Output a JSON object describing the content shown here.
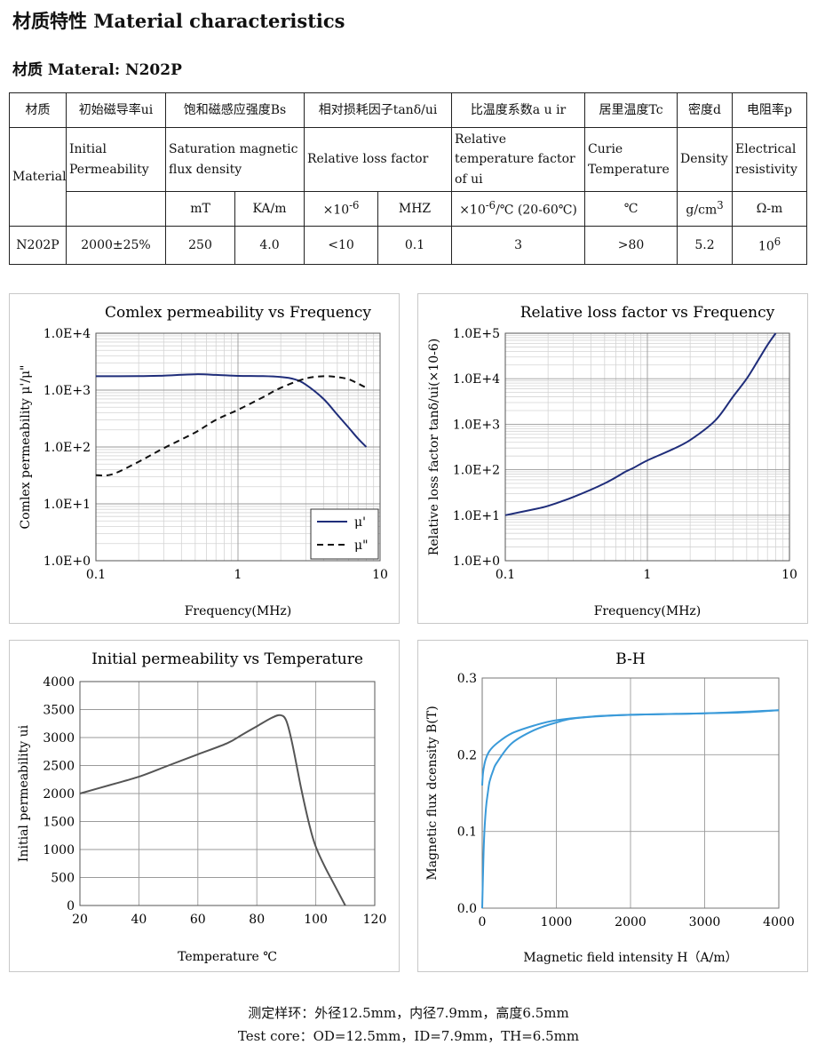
{
  "header": {
    "title": "材质特性 Material characteristics",
    "material_label": "材质 Materal: N202P"
  },
  "table": {
    "cn_headers": [
      "材质",
      "初始磁导率ui",
      "饱和磁感应强度Bs",
      "相对损耗因子tanδ/ui",
      "比温度系数a u ir",
      "居里温度Tc",
      "密度d",
      "电阻率p"
    ],
    "material_label": "Material",
    "en_headers": [
      "Initial Permeability",
      "Saturation magnetic flux density",
      "Relative loss factor",
      "Relative temperature factor of ui",
      "Curie Temperature",
      "Density",
      "Electrical resistivity"
    ],
    "units": {
      "bs_mt": "mT",
      "bs_kam": "KA/m",
      "loss_e": "×10",
      "loss_e_exp": "-6",
      "loss_mhz": "MHZ",
      "temp_coef_pre": "×10",
      "temp_coef_exp": "-6",
      "temp_coef_post": "/℃ (20-60℃)",
      "curie": "℃",
      "density": "g/cm",
      "density_exp": "3",
      "resistivity": "Ω-m"
    },
    "row": {
      "material": "N202P",
      "ui": "2000±25%",
      "bs_mt": "250",
      "bs_kam": "4.0",
      "loss": "<10",
      "loss_mhz": "0.1",
      "temp_coef": "3",
      "curie": ">80",
      "density": "5.2",
      "resistivity_base": "10",
      "resistivity_exp": "6"
    }
  },
  "charts": {
    "permeability_freq": {
      "title": "Comlex permeability vs Frequency",
      "xlabel": "Frequency(MHz)",
      "ylabel": "Comlex permeability μ'/μ\"",
      "x_ticks": [
        "0.1",
        "1",
        "10"
      ],
      "y_ticks": [
        "1.0E+0",
        "1.0E+1",
        "1.0E+2",
        "1.0E+3",
        "1.0E+4"
      ],
      "legend": [
        "μ'",
        "μ\""
      ],
      "color": "#1f2d7a"
    },
    "loss_freq": {
      "title": "Relative loss factor vs Frequency",
      "xlabel": "Frequency(MHz)",
      "ylabel": "Relative loss factor tanδ/ui(×10-6)",
      "x_ticks": [
        "0.1",
        "1",
        "10"
      ],
      "y_ticks": [
        "1.0E+0",
        "1.0E+1",
        "1.0E+2",
        "1.0E+3",
        "1.0E+4",
        "1.0E+5"
      ],
      "color": "#1f2d7a"
    },
    "perm_temp": {
      "title": "Initial permeability vs Temperature",
      "xlabel": "Temperature ℃",
      "ylabel": "Initial permeability ui",
      "x_ticks": [
        "20",
        "40",
        "60",
        "80",
        "100",
        "120"
      ],
      "y_ticks": [
        "0",
        "500",
        "1000",
        "1500",
        "2000",
        "2500",
        "3000",
        "3500",
        "4000"
      ],
      "color": "#555555"
    },
    "bh": {
      "title": "B-H",
      "xlabel": "Magnetic field intensity H（A/m）",
      "ylabel": "Magnetic flux dcensity B(T)",
      "x_ticks": [
        "0",
        "1000",
        "2000",
        "3000",
        "4000"
      ],
      "y_ticks": [
        "0.0",
        "0.1",
        "0.2",
        "0.3"
      ],
      "color": "#3a9ad9"
    }
  },
  "chart_data": [
    {
      "type": "line",
      "title": "Comlex permeability vs Frequency",
      "xlabel": "Frequency(MHz)",
      "ylabel": "Comlex permeability μ'/μ\"",
      "xscale": "log",
      "yscale": "log",
      "xlim": [
        0.1,
        10
      ],
      "ylim": [
        1,
        10000
      ],
      "series": [
        {
          "name": "μ'",
          "style": "solid",
          "x": [
            0.1,
            0.2,
            0.3,
            0.5,
            0.7,
            1,
            1.5,
            2,
            2.5,
            3,
            4,
            5,
            6,
            7,
            8
          ],
          "y": [
            1750,
            1760,
            1800,
            1900,
            1850,
            1780,
            1760,
            1700,
            1550,
            1250,
            700,
            370,
            220,
            140,
            100
          ]
        },
        {
          "name": "μ\"",
          "style": "dashed",
          "x": [
            0.1,
            0.13,
            0.2,
            0.3,
            0.5,
            0.7,
            1,
            1.5,
            2,
            3,
            4,
            5,
            6,
            7,
            8
          ],
          "y": [
            32,
            33,
            55,
            95,
            180,
            300,
            450,
            750,
            1100,
            1600,
            1750,
            1700,
            1550,
            1300,
            1100
          ]
        }
      ]
    },
    {
      "type": "line",
      "title": "Relative loss factor vs Frequency",
      "xlabel": "Frequency(MHz)",
      "ylabel": "Relative loss factor tanδ/ui(×10-6)",
      "xscale": "log",
      "yscale": "log",
      "xlim": [
        0.1,
        10
      ],
      "ylim": [
        1,
        100000
      ],
      "series": [
        {
          "name": "tanδ/ui",
          "x": [
            0.1,
            0.15,
            0.2,
            0.3,
            0.5,
            0.7,
            0.8,
            1,
            1.5,
            2,
            3,
            4,
            5,
            6,
            7,
            8
          ],
          "y": [
            10,
            13,
            16,
            25,
            50,
            90,
            110,
            160,
            280,
            450,
            1200,
            4000,
            10000,
            25000,
            55000,
            100000
          ]
        }
      ]
    },
    {
      "type": "line",
      "title": "Initial permeability vs Temperature",
      "xlabel": "Temperature ℃",
      "ylabel": "Initial permeability ui",
      "xlim": [
        20,
        120
      ],
      "ylim": [
        0,
        4000
      ],
      "series": [
        {
          "name": "ui",
          "x": [
            20,
            30,
            40,
            50,
            60,
            70,
            75,
            80,
            85,
            88,
            90,
            92,
            95,
            98,
            100,
            103,
            106,
            110
          ],
          "y": [
            2000,
            2150,
            2300,
            2500,
            2700,
            2900,
            3050,
            3200,
            3350,
            3400,
            3300,
            2900,
            2100,
            1400,
            1050,
            700,
            400,
            0
          ]
        }
      ]
    },
    {
      "type": "line",
      "title": "B-H",
      "xlabel": "Magnetic field intensity H（A/m）",
      "ylabel": "Magnetic flux dcensity B(T)",
      "xlim": [
        0,
        4000
      ],
      "ylim": [
        0,
        0.3
      ],
      "series": [
        {
          "name": "upper branch",
          "x": [
            0,
            10,
            25,
            50,
            100,
            200,
            400,
            700,
            1000,
            1500,
            2000,
            3000,
            3500,
            4000
          ],
          "y": [
            0.16,
            0.175,
            0.185,
            0.195,
            0.205,
            0.215,
            0.228,
            0.238,
            0.245,
            0.25,
            0.252,
            0.254,
            0.255,
            0.258
          ]
        },
        {
          "name": "lower branch",
          "x": [
            0,
            10,
            25,
            50,
            75,
            100,
            150,
            200,
            400,
            700,
            1000,
            1300,
            2000,
            3000,
            4000
          ],
          "y": [
            0.0,
            0.04,
            0.09,
            0.13,
            0.15,
            0.165,
            0.18,
            0.19,
            0.215,
            0.232,
            0.242,
            0.248,
            0.252,
            0.254,
            0.258
          ]
        }
      ]
    }
  ],
  "footer": {
    "cn": "测定样环：外径12.5mm，内径7.9mm，高度6.5mm",
    "en": "Test core：OD=12.5mm，ID=7.9mm，TH=6.5mm"
  }
}
